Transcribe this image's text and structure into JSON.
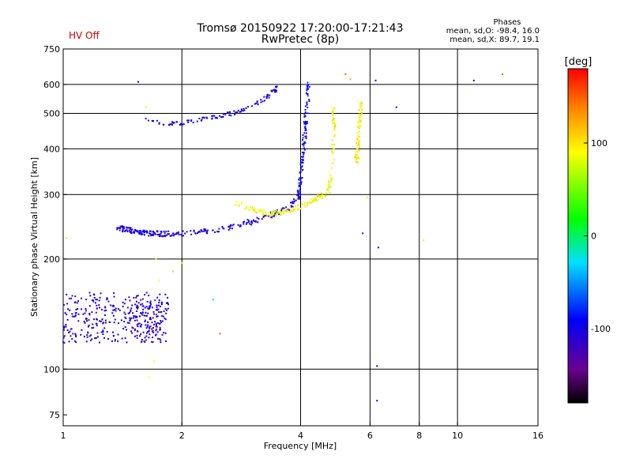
{
  "chart_data": {
    "type": "scatter",
    "title": "Tromsø 20150922 17:20:00-17:21:43",
    "subtitle": "RwPretec (8p)",
    "status": "HV Off",
    "status_color": "#cc0000",
    "info": {
      "heading": "Phases",
      "line1": "mean, sd,O: -98.4, 16.0",
      "line2": "mean, sd,X: 89.7, 19.1"
    },
    "xlabel": "Frequency [MHz]",
    "ylabel": "Stationary phase Virtual Height [km]",
    "xscale": "log",
    "yscale": "log",
    "xlim": [
      1,
      16
    ],
    "ylim": [
      70,
      750
    ],
    "xticks": [
      "1",
      "2",
      "4",
      "6",
      "8",
      "10",
      "16"
    ],
    "yticks": [
      "75",
      "100",
      "200",
      "300",
      "400",
      "500",
      "600",
      "750"
    ],
    "xgrid": [
      2,
      4,
      6,
      8,
      10
    ],
    "ygrid": [
      100,
      200,
      300,
      400,
      500,
      600
    ],
    "grid": true,
    "colorbar": {
      "label": "[deg]",
      "range": [
        -180,
        180
      ],
      "ticks": [
        "100",
        "0",
        "-100"
      ],
      "tick_values": [
        100,
        0,
        -100
      ]
    },
    "point_sets": [
      {
        "type": "region",
        "f_range": [
          1.0,
          1.85
        ],
        "h_range": [
          118,
          162
        ],
        "phase": -110,
        "n": 330
      },
      {
        "type": "region",
        "f_range": [
          1.52,
          1.78
        ],
        "h_range": [
          120,
          152
        ],
        "phase": -110,
        "n": 60
      },
      {
        "type": "trace",
        "f": [
          1.38,
          1.5,
          1.65,
          1.8,
          2.0,
          2.3,
          2.7,
          3.2,
          3.7,
          4.0
        ],
        "h": [
          244,
          238,
          235,
          234,
          235,
          238,
          245,
          258,
          275,
          300
        ],
        "phase": -105,
        "spread": 0.022,
        "n": 260
      },
      {
        "type": "trace",
        "f": [
          1.6,
          1.8,
          2.0,
          2.4,
          2.8,
          3.2,
          3.5
        ],
        "h": [
          480,
          470,
          470,
          488,
          505,
          540,
          590
        ],
        "phase": -105,
        "spread": 0.015,
        "n": 110
      },
      {
        "type": "trace",
        "f": [
          3.95,
          4.0,
          4.05,
          4.1,
          4.15,
          4.2
        ],
        "h": [
          300,
          330,
          380,
          440,
          520,
          600
        ],
        "phase": -95,
        "spread": 0.02,
        "n": 110
      },
      {
        "type": "trace",
        "f": [
          2.7,
          3.0,
          3.3,
          3.6,
          4.0,
          4.4,
          4.7,
          4.8,
          4.85,
          4.85
        ],
        "h": [
          285,
          275,
          265,
          268,
          278,
          292,
          305,
          350,
          450,
          520
        ],
        "phase": 90,
        "spread": 0.02,
        "n": 170
      },
      {
        "type": "trace",
        "f": [
          5.55,
          5.6,
          5.65,
          5.7
        ],
        "h": [
          370,
          420,
          480,
          530
        ],
        "phase": 95,
        "spread": 0.02,
        "n": 70
      },
      {
        "type": "points",
        "f": [
          1.55,
          1.02,
          1.65,
          1.72,
          2.4,
          2.5,
          5.2,
          5.35,
          6.2,
          6.3,
          7.0,
          6.25,
          6.25,
          5.75,
          5.9,
          8.2,
          11.0,
          13.0,
          1.7,
          2.0,
          1.9,
          1.75,
          1.62,
          5.5
        ],
        "h": [
          610,
          228,
          95,
          200,
          155,
          125,
          640,
          620,
          615,
          215,
          520,
          102,
          82,
          235,
          295,
          225,
          615,
          640,
          105,
          195,
          185,
          175,
          520,
          380
        ],
        "phase": [
          -100,
          70,
          90,
          80,
          -30,
          150,
          150,
          120,
          -110,
          -90,
          -100,
          -90,
          -95,
          -100,
          80,
          95,
          -100,
          150,
          90,
          70,
          60,
          90,
          100,
          120
        ]
      }
    ]
  }
}
